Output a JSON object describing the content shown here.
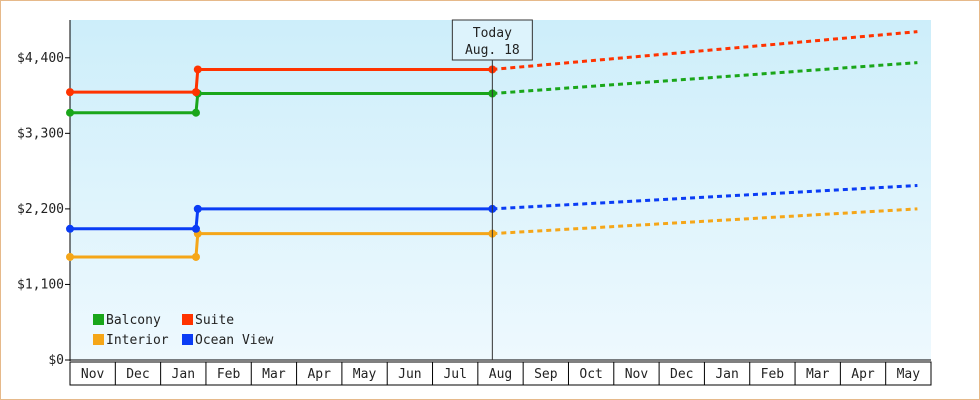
{
  "chart_data": {
    "type": "line",
    "style": "step with dashed projection",
    "x_ticks": [
      "Nov",
      "Dec",
      "Jan",
      "Feb",
      "Mar",
      "Apr",
      "May",
      "Jun",
      "Jul",
      "Aug",
      "Sep",
      "Oct",
      "Nov",
      "Dec",
      "Jan",
      "Feb",
      "Mar",
      "Apr",
      "May"
    ],
    "ylim": [
      0,
      4950
    ],
    "y_ticks": [
      {
        "value": 0,
        "label": "$0"
      },
      {
        "value": 1100,
        "label": "$1,100"
      },
      {
        "value": 2200,
        "label": "$2,200"
      },
      {
        "value": 3300,
        "label": "$3,300"
      },
      {
        "value": 4400,
        "label": "$4,400"
      }
    ],
    "today": {
      "line1": "Today",
      "line2": "Aug. 18",
      "x": 9.32
    },
    "series": [
      {
        "name": "Balcony",
        "color": "#1aa61a",
        "steps": [
          {
            "x": 0,
            "y": 3600
          },
          {
            "x": 2.78,
            "y": 3600
          },
          {
            "x": 2.82,
            "y": 3880
          },
          {
            "x": 9.32,
            "y": 3880
          }
        ],
        "projection": {
          "x_end": 18.7,
          "y_end": 4330
        }
      },
      {
        "name": "Suite",
        "color": "#ff3300",
        "steps": [
          {
            "x": 0,
            "y": 3900
          },
          {
            "x": 2.78,
            "y": 3900
          },
          {
            "x": 2.82,
            "y": 4230
          },
          {
            "x": 9.32,
            "y": 4230
          }
        ],
        "projection": {
          "x_end": 18.7,
          "y_end": 4780
        }
      },
      {
        "name": "Interior",
        "color": "#f5a618",
        "steps": [
          {
            "x": 0,
            "y": 1500
          },
          {
            "x": 2.78,
            "y": 1500
          },
          {
            "x": 2.82,
            "y": 1840
          },
          {
            "x": 9.32,
            "y": 1840
          }
        ],
        "projection": {
          "x_end": 18.7,
          "y_end": 2200
        }
      },
      {
        "name": "Ocean View",
        "color": "#0a3cf5",
        "steps": [
          {
            "x": 0,
            "y": 1910
          },
          {
            "x": 2.78,
            "y": 1910
          },
          {
            "x": 2.82,
            "y": 2200
          },
          {
            "x": 9.32,
            "y": 2200
          }
        ],
        "projection": {
          "x_end": 18.7,
          "y_end": 2540
        }
      }
    ],
    "legend": [
      {
        "name": "Balcony",
        "color": "#1aa61a"
      },
      {
        "name": "Suite",
        "color": "#ff3300"
      },
      {
        "name": "Interior",
        "color": "#f5a618"
      },
      {
        "name": "Ocean View",
        "color": "#0a3cf5"
      }
    ],
    "legend_position": "bottom-left",
    "grid": false,
    "background": [
      "#cdeefa",
      "#eef9fe"
    ]
  }
}
